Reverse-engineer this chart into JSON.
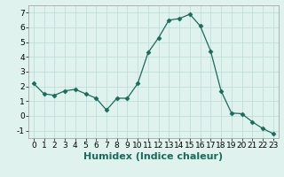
{
  "x": [
    0,
    1,
    2,
    3,
    4,
    5,
    6,
    7,
    8,
    9,
    10,
    11,
    12,
    13,
    14,
    15,
    16,
    17,
    18,
    19,
    20,
    21,
    22,
    23
  ],
  "y": [
    2.2,
    1.5,
    1.4,
    1.7,
    1.8,
    1.5,
    1.2,
    0.4,
    1.2,
    1.2,
    2.2,
    4.3,
    5.3,
    6.5,
    6.6,
    6.9,
    6.1,
    4.4,
    1.7,
    0.2,
    0.15,
    -0.4,
    -0.85,
    -1.2
  ],
  "line_color": "#1a6b5a",
  "marker": "D",
  "marker_size": 2.5,
  "bg_color": "#dff2ee",
  "grid_color": "#b8dbd6",
  "xlabel": "Humidex (Indice chaleur)",
  "ylim": [
    -1.5,
    7.5
  ],
  "xlim": [
    -0.5,
    23.5
  ],
  "yticks": [
    -1,
    0,
    1,
    2,
    3,
    4,
    5,
    6,
    7
  ],
  "xticks": [
    0,
    1,
    2,
    3,
    4,
    5,
    6,
    7,
    8,
    9,
    10,
    11,
    12,
    13,
    14,
    15,
    16,
    17,
    18,
    19,
    20,
    21,
    22,
    23
  ],
  "tick_labelsize": 6.5,
  "xlabel_fontsize": 8,
  "xlabel_fontweight": "bold"
}
